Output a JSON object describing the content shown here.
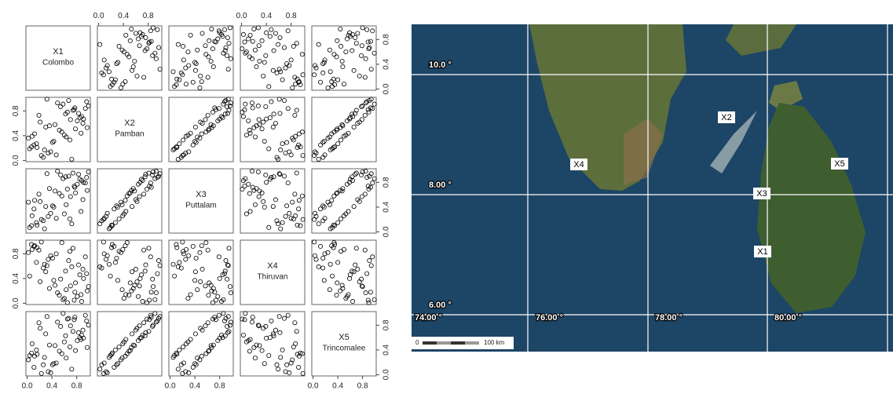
{
  "chart_data": {
    "type": "scatter_matrix",
    "lim": [
      -0.02,
      1.02
    ],
    "ticks": [
      {
        "value": 0,
        "label": "0.0"
      },
      {
        "value": 0.4,
        "label": "0.4"
      },
      {
        "value": 0.8,
        "label": "0.8"
      }
    ],
    "variables": [
      {
        "name": "X1",
        "label": "Colombo",
        "values": [
          0.34,
          0.77,
          0.12,
          0.91,
          0.58,
          0.26,
          0.69,
          0.45,
          0.83,
          0.07,
          0.52,
          0.96,
          0.38,
          0.21,
          0.74,
          0.63,
          0.15,
          0.88,
          0.3,
          0.47,
          0.99,
          0.56,
          0.04,
          0.81,
          0.67,
          0.43,
          0.19,
          0.72,
          0.36,
          0.94,
          0.6,
          0.11,
          0.85,
          0.49,
          0.28,
          0.78,
          0.65,
          0.02,
          0.9,
          0.23,
          0.54,
          0.87,
          0.41,
          0.7,
          0.32,
          0.16,
          0.97,
          0.62,
          0.08,
          0.76
        ]
      },
      {
        "name": "X2",
        "label": "Pamban",
        "values": [
          0.12,
          0.85,
          0.43,
          0.67,
          0.91,
          0.05,
          0.33,
          0.58,
          0.76,
          0.22,
          0.49,
          0.95,
          0.14,
          0.62,
          0.81,
          0.38,
          0.27,
          0.71,
          0.54,
          0.09,
          0.88,
          0.46,
          0.19,
          0.64,
          0.97,
          0.31,
          0.73,
          0.02,
          0.56,
          0.84,
          0.41,
          0.25,
          0.69,
          0.93,
          0.17,
          0.51,
          0.78,
          0.36,
          0.6,
          0.08,
          0.87,
          0.44,
          0.29,
          0.66,
          0.99,
          0.21,
          0.53,
          0.75,
          0.39,
          0.82
        ]
      },
      {
        "name": "X3",
        "label": "Puttalam",
        "values": [
          0.25,
          0.72,
          0.51,
          0.8,
          0.86,
          0.18,
          0.21,
          0.66,
          0.93,
          0.1,
          0.62,
          0.88,
          0.3,
          0.49,
          0.95,
          0.44,
          0.15,
          0.83,
          0.41,
          0.22,
          0.97,
          0.58,
          0.07,
          0.77,
          0.9,
          0.4,
          0.61,
          0.13,
          0.7,
          0.79,
          0.29,
          0.37,
          0.85,
          0.98,
          0.05,
          0.63,
          0.69,
          0.48,
          0.52,
          0.2,
          0.92,
          0.33,
          0.42,
          0.57,
          0.94,
          0.11,
          0.67,
          0.89,
          0.26,
          0.74
        ]
      },
      {
        "name": "X4",
        "label": "Thiruvan",
        "values": [
          0.71,
          0.18,
          0.93,
          0.4,
          0.06,
          0.57,
          0.84,
          0.29,
          0.62,
          0.95,
          0.13,
          0.48,
          0.77,
          0.35,
          0.89,
          0.22,
          0.66,
          0.03,
          0.51,
          0.8,
          0.27,
          0.98,
          0.44,
          0.11,
          0.69,
          0.37,
          0.86,
          0.59,
          0.24,
          0.75,
          0.08,
          0.92,
          0.46,
          0.17,
          0.63,
          0.33,
          0.01,
          0.82,
          0.55,
          0.99,
          0.39,
          0.14,
          0.73,
          0.28,
          0.61,
          0.9,
          0.2,
          0.52,
          0.87,
          0.05
        ]
      },
      {
        "name": "X5",
        "label": "Trincomalee",
        "values": [
          0.05,
          0.93,
          0.3,
          0.59,
          0.99,
          0.16,
          0.45,
          0.47,
          0.68,
          0.35,
          0.38,
          0.87,
          0.03,
          0.75,
          0.7,
          0.27,
          0.4,
          0.64,
          0.66,
          0.19,
          0.8,
          0.34,
          0.31,
          0.55,
          0.91,
          0.18,
          0.84,
          0.09,
          0.48,
          0.96,
          0.53,
          0.12,
          0.6,
          0.85,
          0.28,
          0.39,
          0.9,
          0.24,
          0.72,
          0.02,
          0.78,
          0.57,
          0.16,
          0.79,
          0.94,
          0.33,
          0.44,
          0.63,
          0.5,
          0.89
        ]
      }
    ]
  },
  "map": {
    "lat_labels": [
      "10.0 °",
      "8.00 °",
      "6.00 °"
    ],
    "lon_labels": [
      "74.00 °",
      "76.00 °",
      "78.00 °",
      "80.00 °"
    ],
    "stations": [
      "X1",
      "X2",
      "X3",
      "X4",
      "X5"
    ],
    "scale_labels": [
      "0",
      "100 km"
    ]
  }
}
